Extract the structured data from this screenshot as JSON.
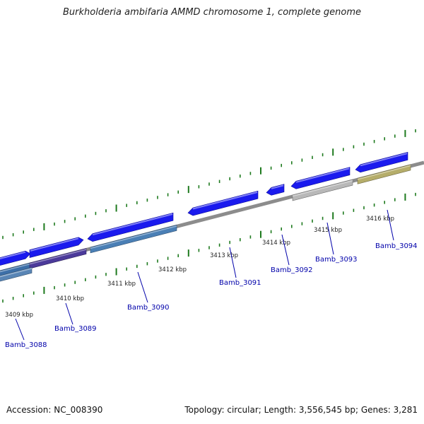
{
  "title": "Burkholderia ambifaria AMMD chromosome 1, complete genome",
  "footer": {
    "accession": "Accession: NC_008390",
    "summary": "Topology: circular; Length: 3,556,545 bp; Genes: 3,281"
  },
  "colors": {
    "backbone": "#8c8c8c",
    "forward_gene": "#1a1aee",
    "tick": "#1e7a1e",
    "gene_label": "#0000aa",
    "scale_label": "#222222"
  },
  "scale_labels": [
    "3409 kbp",
    "3410 kbp",
    "3411 kbp",
    "3412 kbp",
    "3413 kbp",
    "3414 kbp",
    "3415 kbp",
    "3416 kbp"
  ],
  "genes": [
    {
      "name": "Bamb_3088",
      "feature_color": "#3c6fa8"
    },
    {
      "name": "Bamb_3089",
      "feature_color": "#4b3a9a"
    },
    {
      "name": "Bamb_3090",
      "feature_color": "#4a7fb5"
    },
    {
      "name": "Bamb_3091",
      "feature_color": ""
    },
    {
      "name": "Bamb_3092",
      "feature_color": ""
    },
    {
      "name": "Bamb_3093",
      "feature_color": "#b8b8b8"
    },
    {
      "name": "Bamb_3094",
      "feature_color": "#b5ad6a"
    }
  ]
}
